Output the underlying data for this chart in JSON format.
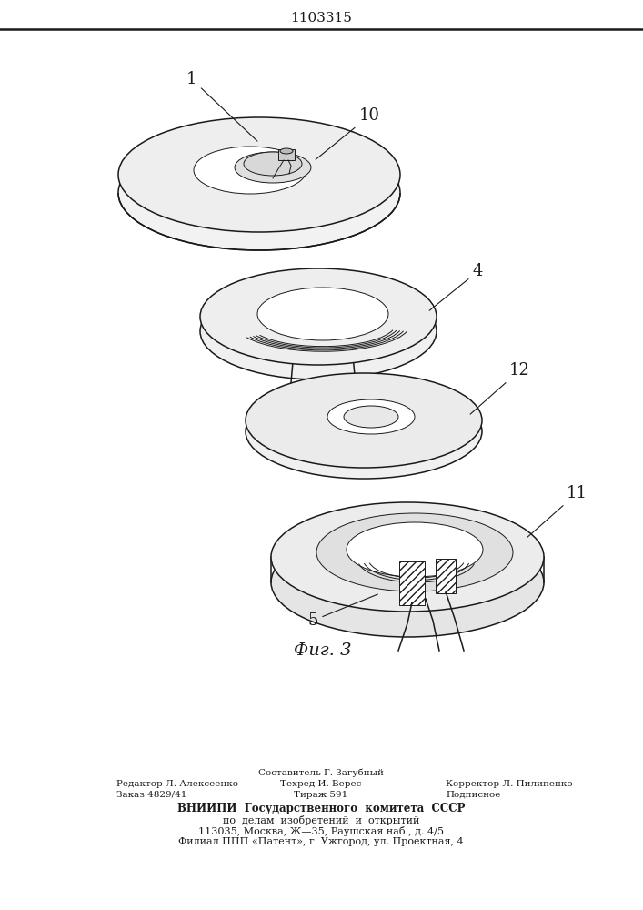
{
  "patent_number": "1103315",
  "figure_label": "Фиг. 3",
  "background_color": "#ffffff",
  "line_color": "#1a1a1a",
  "footer": {
    "col1_r1": "Редактор Л. Алексеенко",
    "col1_r2": "Заказ 4829/41",
    "col2_r0": "Составитель Г. Загубный",
    "col2_r1": "Техред И. Верес",
    "col2_r2": "Тираж 591",
    "col3_r1": "Корректор Л. Пилипенко",
    "col3_r2": "Подписное",
    "block1": "ВНИИПИ  Государственного  комитета  СССР",
    "block2": "по  делам  изобретений  и  открытий",
    "block3": "113035, Москва, Ж—35, Раушская наб., д. 4/5",
    "block4": "Филиал ППП «Патент», г. Ужгород, ул. Проектная, 4"
  }
}
